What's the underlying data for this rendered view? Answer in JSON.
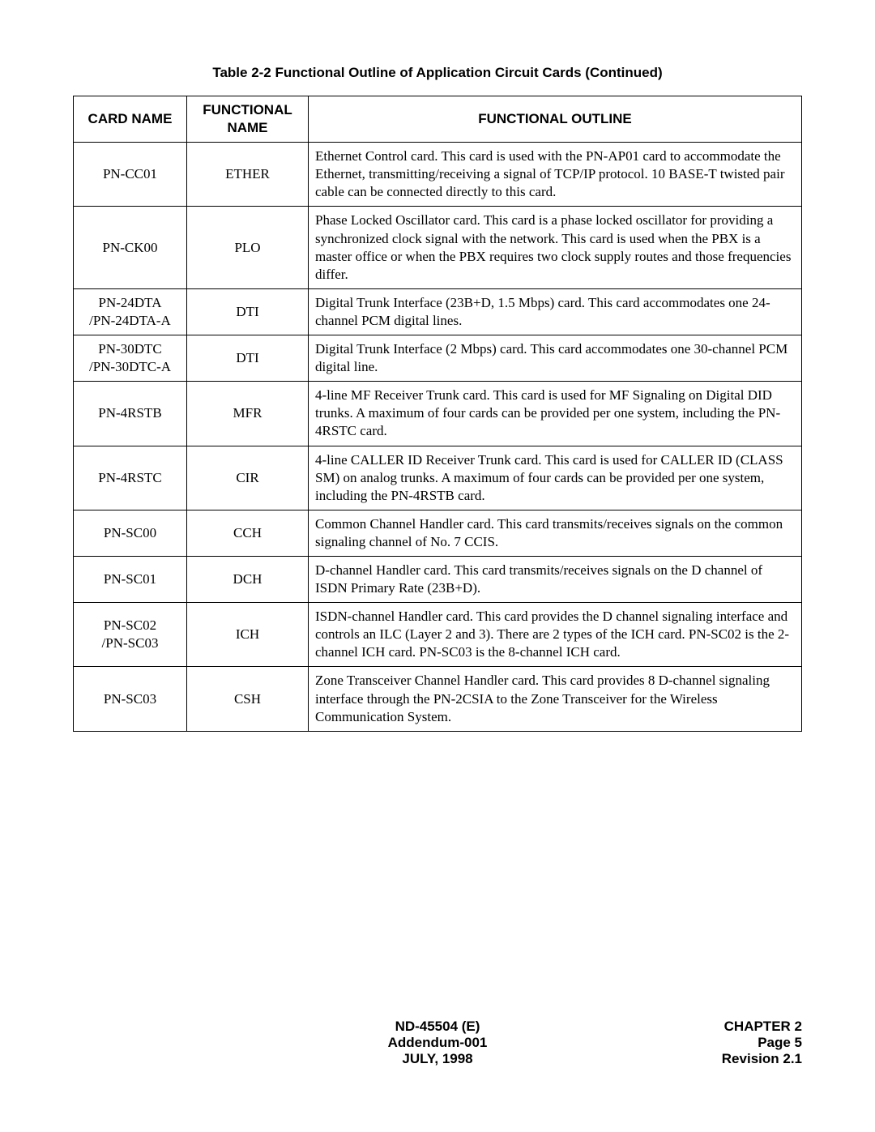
{
  "caption": "Table 2-2  Functional Outline of Application Circuit Cards (Continued)",
  "headers": {
    "card": "CARD NAME",
    "func": "FUNCTIONAL NAME",
    "desc": "FUNCTIONAL OUTLINE"
  },
  "rows": [
    {
      "card": "PN-CC01",
      "func": "ETHER",
      "desc": "Ethernet Control card.\nThis card is used with the PN-AP01 card to accommodate the Ethernet, transmitting/receiving a signal of TCP/IP protocol.\n10 BASE-T twisted pair cable can be connected directly to this card."
    },
    {
      "card": "PN-CK00",
      "func": "PLO",
      "desc": "Phase Locked Oscillator card.\nThis card is a phase locked oscillator for providing a synchronized clock signal with the network.\nThis card is used when the PBX is a master office or when the PBX requires two clock supply routes and those frequencies differ."
    },
    {
      "card": "PN-24DTA\n/PN-24DTA-A",
      "func": "DTI",
      "desc": "Digital Trunk Interface (23B+D, 1.5 Mbps) card.\nThis card accommodates one 24-channel PCM digital lines."
    },
    {
      "card": "PN-30DTC\n/PN-30DTC-A",
      "func": "DTI",
      "desc": "Digital Trunk Interface (2 Mbps) card.\nThis card accommodates one 30-channel PCM digital line."
    },
    {
      "card": "PN-4RSTB",
      "func": "MFR",
      "desc": "4-line MF Receiver Trunk card.\nThis card is used for MF Signaling on Digital DID trunks. A maximum of four cards can be provided per one system, including the PN-4RSTC card."
    },
    {
      "card": "PN-4RSTC",
      "func": "CIR",
      "desc": "4-line CALLER ID Receiver Trunk card.\nThis card is used for CALLER ID (CLASS SM) on analog trunks. A maximum of four cards can be provided per one system, including the PN-4RSTB card."
    },
    {
      "card": "PN-SC00",
      "func": "CCH",
      "desc": "Common Channel Handler card.\nThis card transmits/receives signals on the common signaling channel of No. 7 CCIS."
    },
    {
      "card": "PN-SC01",
      "func": "DCH",
      "desc": "D-channel Handler card.\nThis card transmits/receives signals on the D channel of ISDN Primary Rate (23B+D)."
    },
    {
      "card": "PN-SC02\n/PN-SC03",
      "func": "ICH",
      "desc": "ISDN-channel Handler card.\nThis card provides the D channel signaling interface and controls an ILC (Layer 2 and 3).\nThere are 2 types of the ICH card.\nPN-SC02 is the 2-channel ICH card.\nPN-SC03 is the 8-channel ICH card."
    },
    {
      "card": "PN-SC03",
      "func": "CSH",
      "desc": "Zone Transceiver Channel Handler card.\nThis card provides 8 D-channel signaling interface through the PN-2CSIA to the Zone Transceiver for the Wireless Communication System."
    }
  ],
  "footer": {
    "doc": "ND-45504 (E)",
    "addendum": "Addendum-001",
    "date": "JULY, 1998",
    "chapter": "CHAPTER 2",
    "page": "Page 5",
    "rev": "Revision 2.1"
  }
}
